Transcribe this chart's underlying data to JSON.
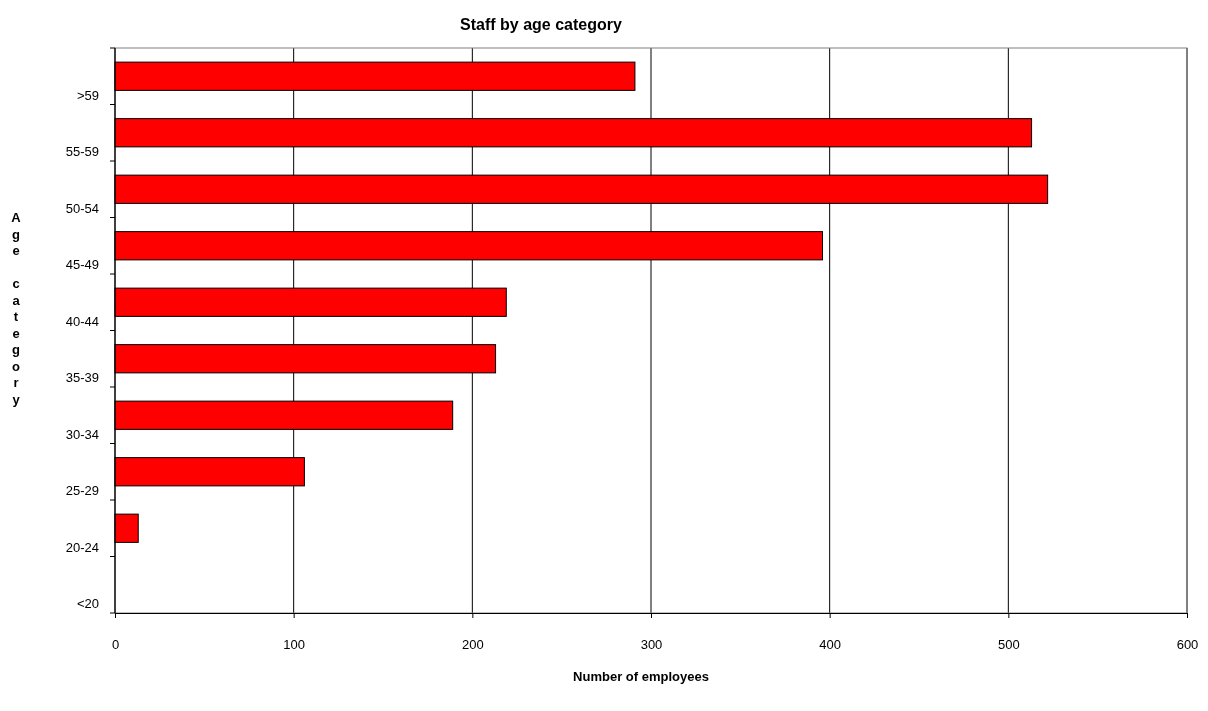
{
  "chart_data": {
    "type": "bar",
    "orientation": "horizontal",
    "title": "Staff by age category",
    "xlabel": "Number of employees",
    "ylabel": "Age category",
    "categories": [
      ">59",
      "55-59",
      "50-54",
      "45-49",
      "40-44",
      "35-39",
      "30-34",
      "25-29",
      "20-24",
      "<20"
    ],
    "values": [
      291,
      513,
      522,
      396,
      219,
      213,
      189,
      106,
      13,
      0
    ],
    "color": "#ff0000",
    "xlim": [
      0,
      600
    ],
    "xticks": [
      0,
      100,
      200,
      300,
      400,
      500,
      600
    ],
    "grid": "x"
  }
}
